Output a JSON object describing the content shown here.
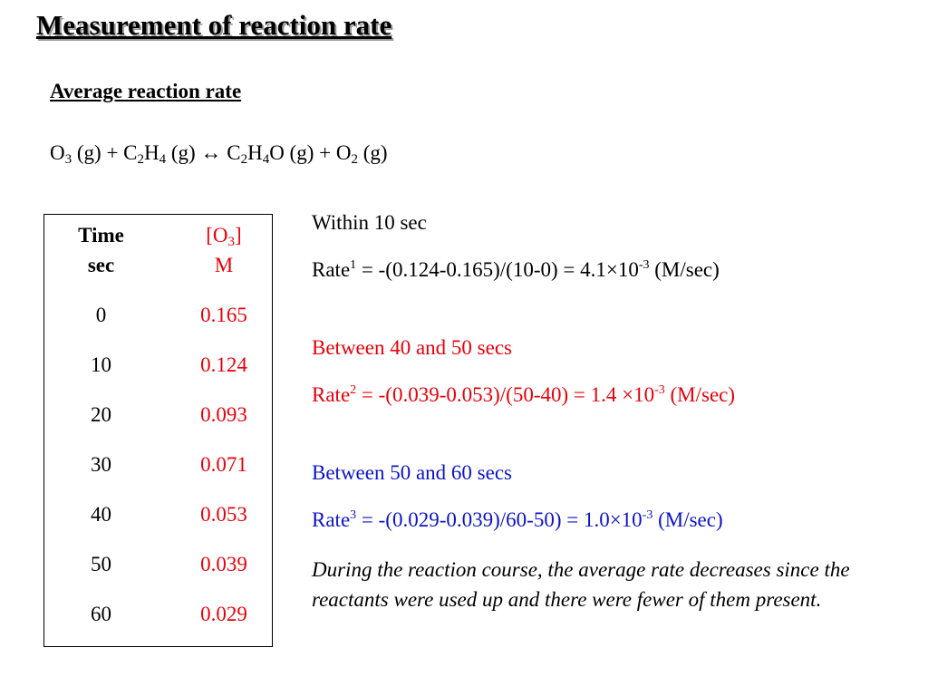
{
  "title": "Measurement of reaction rate",
  "subtitle": "Average reaction rate",
  "equation": {
    "o3": "O",
    "o3_sub": "3",
    "o3_phase": " (g) + C",
    "c2h4_sub1": "2",
    "c2h4_h": "H",
    "c2h4_sub2": "4",
    "c2h4_phase": " (g) ↔ C",
    "c2h4o_sub1": "2",
    "c2h4o_h": "H",
    "c2h4o_sub2": "4",
    "c2h4o_rest": "O (g) + O",
    "o2_sub": "2",
    "o2_phase": " (g)"
  },
  "table": {
    "header_time_line1": "Time",
    "header_time_line2": "sec",
    "header_conc_line1_a": "[O",
    "header_conc_line1_sub": "3",
    "header_conc_line1_b": "]",
    "header_conc_line2": "M",
    "rows": [
      {
        "time": "0",
        "conc": "0.165"
      },
      {
        "time": "10",
        "conc": "0.124"
      },
      {
        "time": "20",
        "conc": "0.093"
      },
      {
        "time": "30",
        "conc": "0.071"
      },
      {
        "time": "40",
        "conc": "0.053"
      },
      {
        "time": "50",
        "conc": "0.039"
      },
      {
        "time": "60",
        "conc": "0.029"
      }
    ]
  },
  "rate1": {
    "heading": "Within 10 sec",
    "label": "Rate",
    "sup": "1",
    "expr": " = -(0.124-0.165)/(10-0) = 4.1×10",
    "exp": "-3",
    "unit": " (M/sec)"
  },
  "rate2": {
    "heading": "Between 40 and 50 secs",
    "label": "Rate",
    "sup": "2",
    "expr": " = -(0.039-0.053)/(50-40) = 1.4 ×10",
    "exp": "-3",
    "unit": " (M/sec)"
  },
  "rate3": {
    "heading": "Between 50 and 60 secs",
    "label": "Rate",
    "sup": "3",
    "expr": " = -(0.029-0.039)/60-50) = 1.0×10",
    "exp": "-3",
    "unit": " (M/sec)"
  },
  "conclusion": "During the reaction course, the average rate decreases since the reactants were used up and there were fewer of them present.",
  "colors": {
    "red": "#e8000a",
    "blue": "#0b14c8"
  }
}
